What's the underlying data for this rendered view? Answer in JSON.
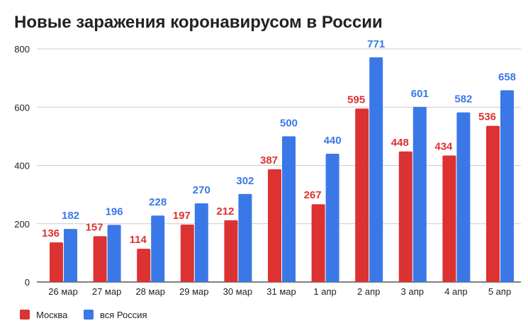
{
  "chart_data": {
    "type": "bar",
    "title": "Новые заражения коронавирусом в России",
    "categories": [
      "26 мар",
      "27 мар",
      "28 мар",
      "29 мар",
      "30 мар",
      "31 мар",
      "1 апр",
      "2 апр",
      "3 апр",
      "4 апр",
      "5 апр"
    ],
    "series": [
      {
        "name": "Москва",
        "color": "#dc3232",
        "values": [
          136,
          157,
          114,
          197,
          212,
          387,
          267,
          595,
          448,
          434,
          536
        ]
      },
      {
        "name": "вся Россия",
        "color": "#3b78e7",
        "values": [
          182,
          196,
          228,
          270,
          302,
          500,
          440,
          771,
          601,
          582,
          658
        ]
      }
    ],
    "yticks": [
      0,
      200,
      400,
      600,
      800
    ],
    "ylim": [
      0,
      800
    ],
    "grid": true,
    "legend": "bottom-left",
    "xlabel": "",
    "ylabel": ""
  }
}
